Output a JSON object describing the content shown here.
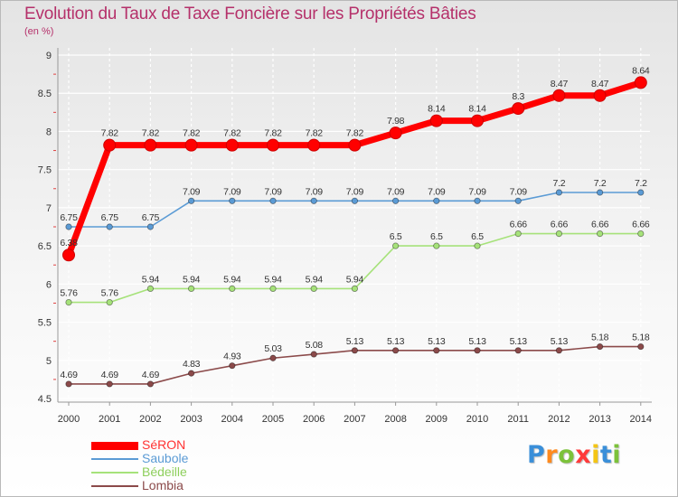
{
  "chart_data": {
    "type": "line",
    "title": "Evolution du Taux de Taxe Foncière sur les Propriétés Bâties",
    "unit_label": "(en %)",
    "xlabel": "",
    "ylabel": "",
    "categories": [
      "2000",
      "2001",
      "2002",
      "2003",
      "2004",
      "2005",
      "2006",
      "2007",
      "2008",
      "2009",
      "2010",
      "2011",
      "2012",
      "2013",
      "2014"
    ],
    "ylim": [
      4.5,
      9
    ],
    "yticks": [
      "4.5",
      "5",
      "5.5",
      "6",
      "6.5",
      "7",
      "7.5",
      "8",
      "8.5",
      "9"
    ],
    "series": [
      {
        "name": "SéRON",
        "color": "#ff0000",
        "values": [
          6.38,
          7.82,
          7.82,
          7.82,
          7.82,
          7.82,
          7.82,
          7.82,
          7.98,
          8.14,
          8.14,
          8.3,
          8.47,
          8.47,
          8.64
        ],
        "labels": [
          "6.38",
          "7.82",
          "7.82",
          "7.82",
          "7.82",
          "7.82",
          "7.82",
          "7.82",
          "7.98",
          "8.14",
          "8.14",
          "8.3",
          "8.47",
          "8.47",
          "8.64"
        ]
      },
      {
        "name": "Saubole",
        "color": "#5b9bd5",
        "values": [
          6.75,
          6.75,
          6.75,
          7.09,
          7.09,
          7.09,
          7.09,
          7.09,
          7.09,
          7.09,
          7.09,
          7.09,
          7.2,
          7.2,
          7.2
        ],
        "labels": [
          "6.75",
          "6.75",
          "6.75",
          "7.09",
          "7.09",
          "7.09",
          "7.09",
          "7.09",
          "7.09",
          "7.09",
          "7.09",
          "7.09",
          "7.2",
          "7.2",
          "7.2"
        ]
      },
      {
        "name": "Bédeille",
        "color": "#a6e27a",
        "values": [
          5.76,
          5.76,
          5.94,
          5.94,
          5.94,
          5.94,
          5.94,
          5.94,
          6.5,
          6.5,
          6.5,
          6.66,
          6.66,
          6.66,
          6.66
        ],
        "labels": [
          "5.76",
          "5.76",
          "5.94",
          "5.94",
          "5.94",
          "5.94",
          "5.94",
          "5.94",
          "6.5",
          "6.5",
          "6.5",
          "6.66",
          "6.66",
          "6.66",
          "6.66"
        ]
      },
      {
        "name": "Lombia",
        "color": "#8b4a4a",
        "values": [
          4.69,
          4.69,
          4.69,
          4.83,
          4.93,
          5.03,
          5.08,
          5.13,
          5.13,
          5.13,
          5.13,
          5.13,
          5.13,
          5.18,
          5.18
        ],
        "labels": [
          "4.69",
          "4.69",
          "4.69",
          "4.83",
          "4.93",
          "5.03",
          "5.08",
          "5.13",
          "5.13",
          "5.13",
          "5.13",
          "5.13",
          "5.13",
          "5.18",
          "5.18"
        ]
      }
    ],
    "legend_position": "bottom-left"
  },
  "logo": {
    "letters": [
      "P",
      "r",
      "o",
      "x",
      "i",
      "t",
      "i"
    ],
    "colors": [
      "#3a8fd9",
      "#ff8a1e",
      "#7cc23a",
      "#ff3b3b",
      "#f4c514",
      "#3a8fd9",
      "#7cc23a"
    ]
  }
}
